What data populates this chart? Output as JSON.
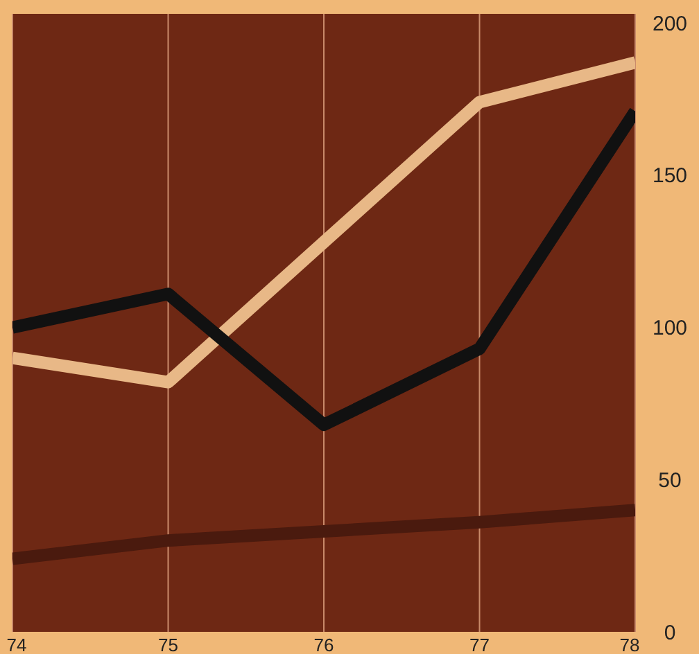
{
  "chart_data": {
    "type": "line",
    "x": [
      74,
      75,
      76,
      77,
      78
    ],
    "xlim": [
      74,
      78
    ],
    "xticks": [
      74,
      75,
      76,
      77,
      78
    ],
    "ylim": [
      0,
      203
    ],
    "yticks": [
      0,
      50,
      100,
      150,
      200
    ],
    "grid": "x",
    "marker": "none",
    "line_style": "solid",
    "series": [
      {
        "color": "#4a1a0e",
        "values": [
          24,
          30,
          33,
          36,
          40
        ]
      },
      {
        "color": "#e8b887",
        "values": [
          90,
          82,
          128,
          174,
          187
        ]
      },
      {
        "color": "#111111",
        "values": [
          100,
          111,
          68,
          93,
          171
        ]
      }
    ]
  }
}
